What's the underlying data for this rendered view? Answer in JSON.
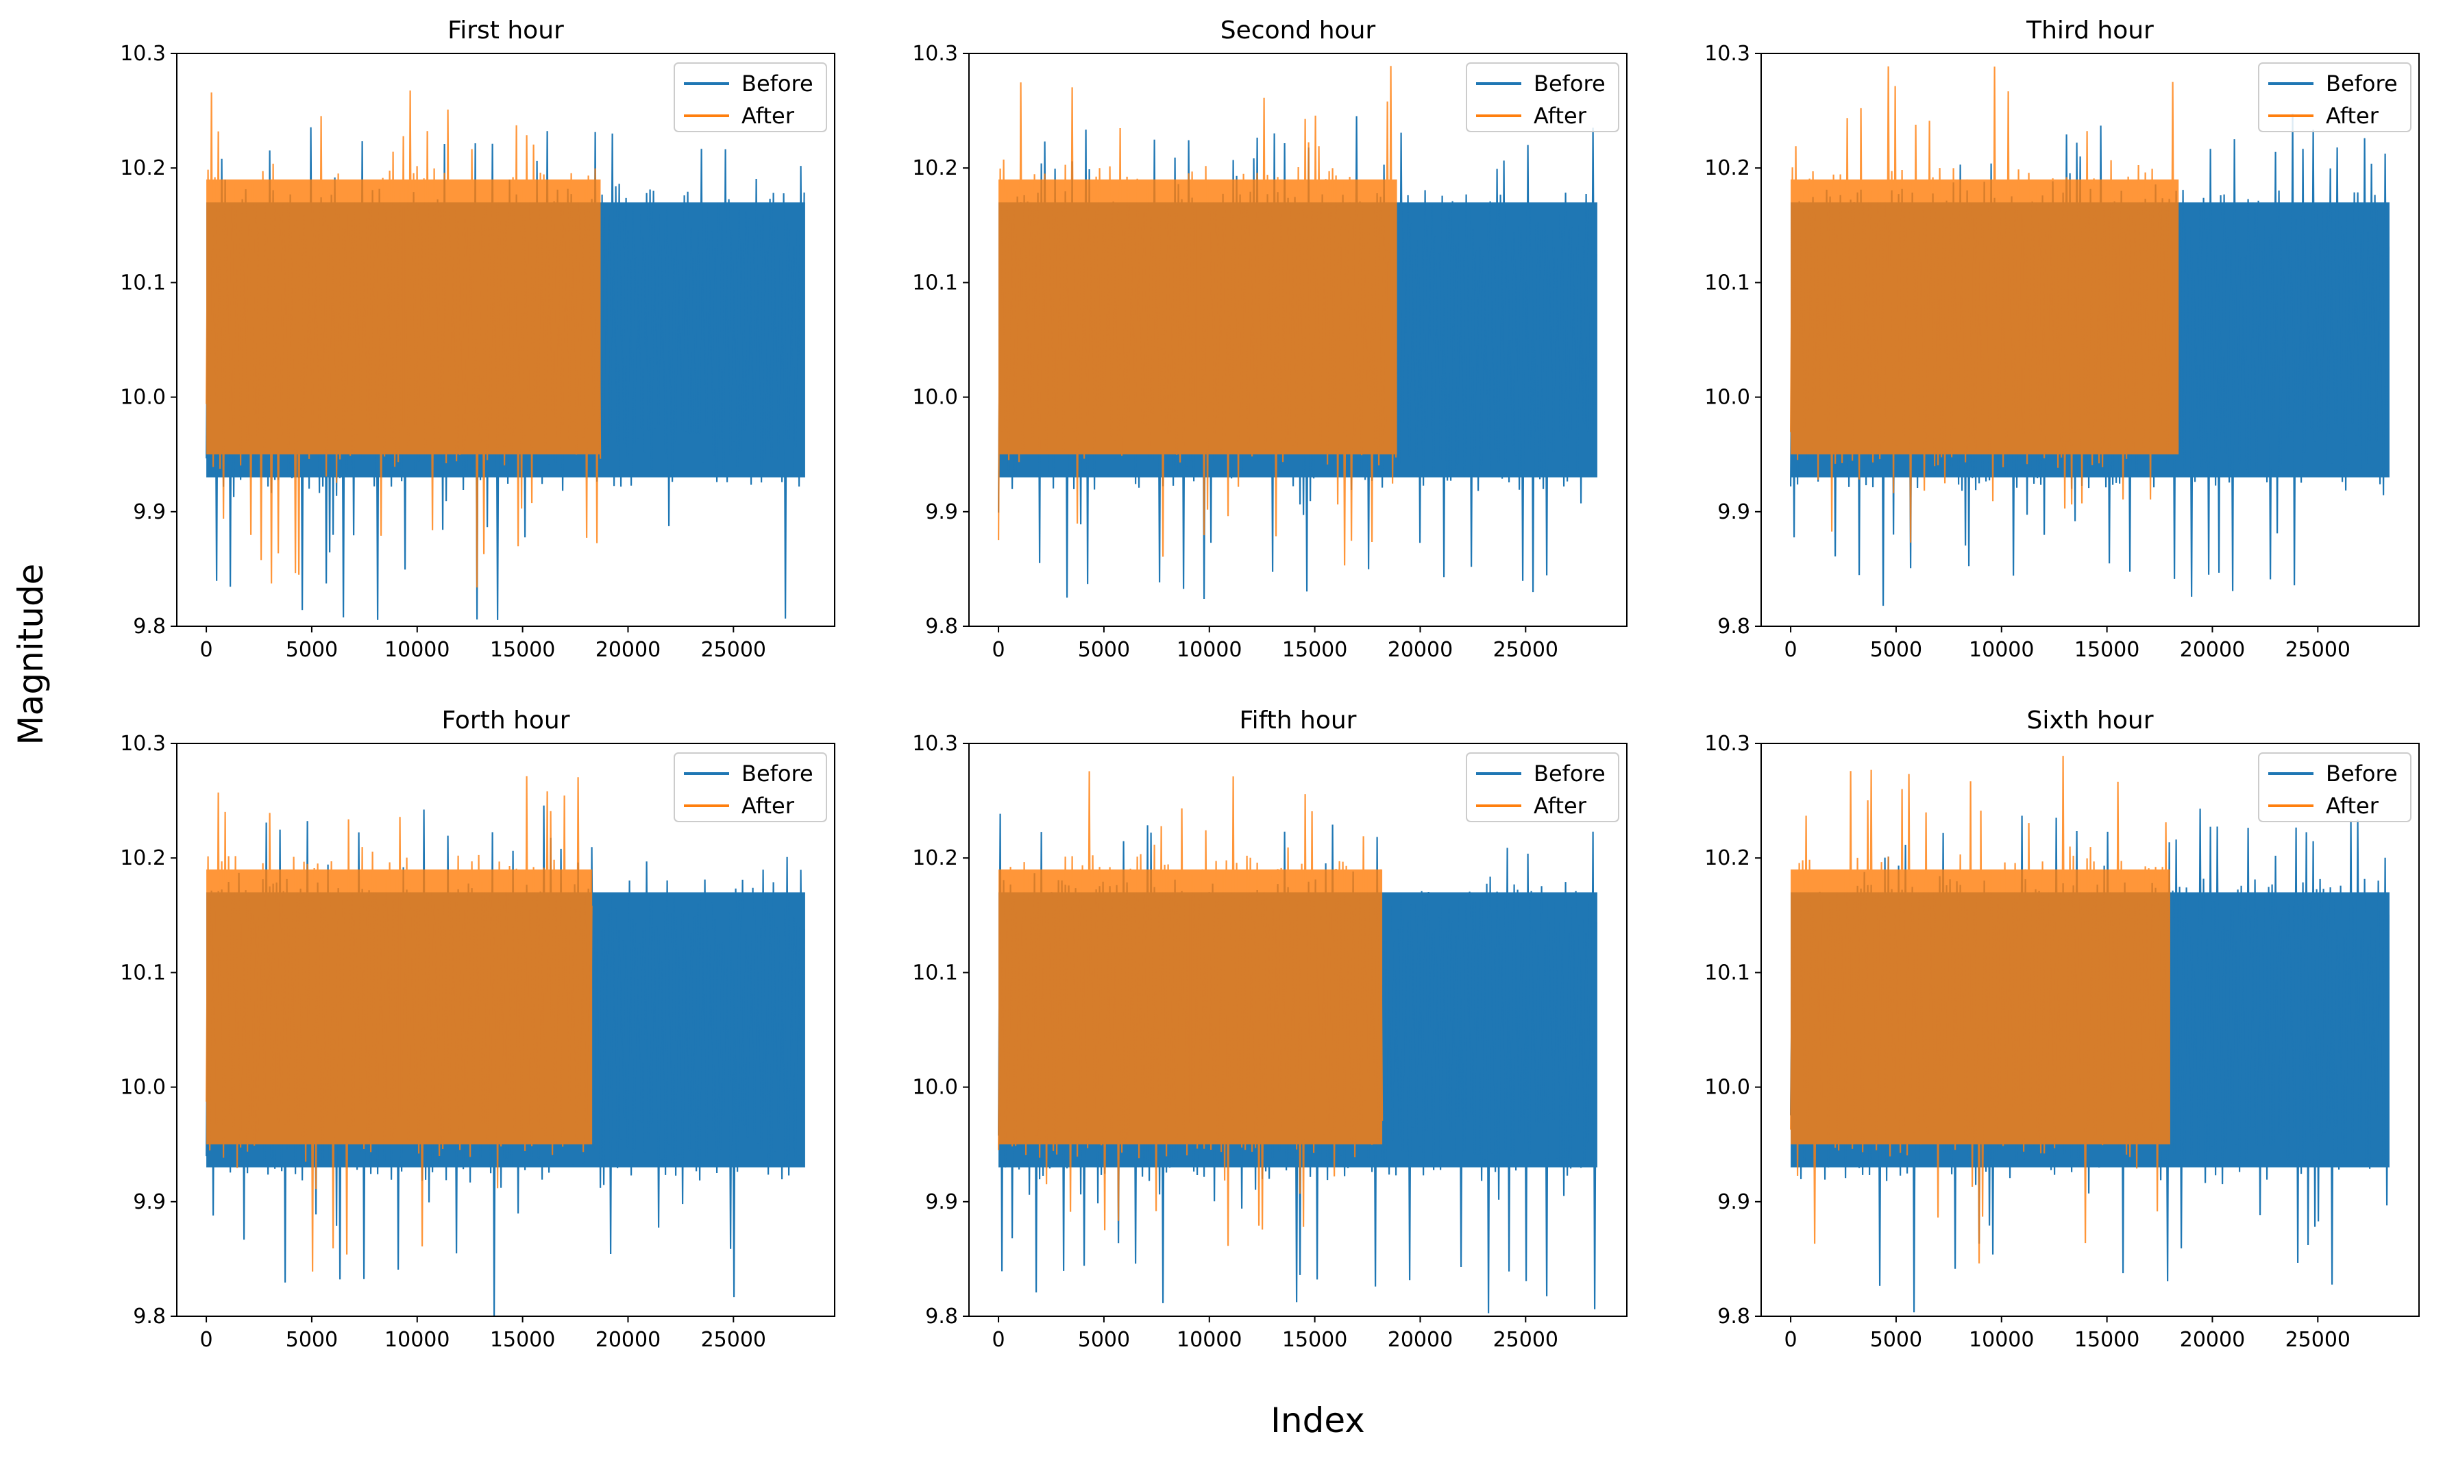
{
  "figure": {
    "xlabel": "Index",
    "ylabel": "Magnitude"
  },
  "chart_data": [
    {
      "type": "line",
      "title": "First hour",
      "xlabel": "",
      "ylabel": "",
      "xlim": [
        -1400,
        29800
      ],
      "ylim": [
        9.8,
        10.3
      ],
      "xticks": [
        0,
        5000,
        10000,
        15000,
        20000,
        25000
      ],
      "yticks": [
        9.8,
        9.9,
        10.0,
        10.1,
        10.2,
        10.3
      ],
      "legend_position": "upper-right",
      "series": [
        {
          "name": "Before",
          "color": "#1f77b4",
          "x_range": [
            0,
            28400
          ],
          "band": [
            9.93,
            10.17
          ],
          "min": 9.8,
          "max": 10.25
        },
        {
          "name": "After",
          "color": "#ff7f0e",
          "x_range": [
            0,
            18700
          ],
          "band": [
            9.95,
            10.19
          ],
          "min": 9.82,
          "max": 10.29
        }
      ]
    },
    {
      "type": "line",
      "title": "Second hour",
      "xlabel": "",
      "ylabel": "",
      "xlim": [
        -1400,
        29800
      ],
      "ylim": [
        9.8,
        10.3
      ],
      "xticks": [
        0,
        5000,
        10000,
        15000,
        20000,
        25000
      ],
      "yticks": [
        9.8,
        9.9,
        10.0,
        10.1,
        10.2,
        10.3
      ],
      "legend_position": "upper-right",
      "series": [
        {
          "name": "Before",
          "color": "#1f77b4",
          "x_range": [
            0,
            28400
          ],
          "band": [
            9.93,
            10.17
          ],
          "min": 9.8,
          "max": 10.25
        },
        {
          "name": "After",
          "color": "#ff7f0e",
          "x_range": [
            0,
            18900
          ],
          "band": [
            9.95,
            10.19
          ],
          "min": 9.83,
          "max": 10.3
        }
      ]
    },
    {
      "type": "line",
      "title": "Third hour",
      "xlabel": "",
      "ylabel": "",
      "xlim": [
        -1400,
        29800
      ],
      "ylim": [
        9.8,
        10.3
      ],
      "xticks": [
        0,
        5000,
        10000,
        15000,
        20000,
        25000
      ],
      "yticks": [
        9.8,
        9.9,
        10.0,
        10.1,
        10.2,
        10.3
      ],
      "legend_position": "upper-right",
      "series": [
        {
          "name": "Before",
          "color": "#1f77b4",
          "x_range": [
            0,
            28400
          ],
          "band": [
            9.93,
            10.17
          ],
          "min": 9.8,
          "max": 10.25
        },
        {
          "name": "After",
          "color": "#ff7f0e",
          "x_range": [
            0,
            18400
          ],
          "band": [
            9.95,
            10.19
          ],
          "min": 9.85,
          "max": 10.3
        }
      ]
    },
    {
      "type": "line",
      "title": "Forth hour",
      "xlabel": "",
      "ylabel": "",
      "xlim": [
        -1400,
        29800
      ],
      "ylim": [
        9.8,
        10.3
      ],
      "xticks": [
        0,
        5000,
        10000,
        15000,
        20000,
        25000
      ],
      "yticks": [
        9.8,
        9.9,
        10.0,
        10.1,
        10.2,
        10.3
      ],
      "legend_position": "upper-right",
      "series": [
        {
          "name": "Before",
          "color": "#1f77b4",
          "x_range": [
            0,
            28400
          ],
          "band": [
            9.93,
            10.17
          ],
          "min": 9.8,
          "max": 10.25
        },
        {
          "name": "After",
          "color": "#ff7f0e",
          "x_range": [
            0,
            18300
          ],
          "band": [
            9.95,
            10.19
          ],
          "min": 9.83,
          "max": 10.3
        }
      ]
    },
    {
      "type": "line",
      "title": "Fifth hour",
      "xlabel": "",
      "ylabel": "",
      "xlim": [
        -1400,
        29800
      ],
      "ylim": [
        9.8,
        10.3
      ],
      "xticks": [
        0,
        5000,
        10000,
        15000,
        20000,
        25000
      ],
      "yticks": [
        9.8,
        9.9,
        10.0,
        10.1,
        10.2,
        10.3
      ],
      "legend_position": "upper-right",
      "series": [
        {
          "name": "Before",
          "color": "#1f77b4",
          "x_range": [
            0,
            28400
          ],
          "band": [
            9.93,
            10.17
          ],
          "min": 9.8,
          "max": 10.25
        },
        {
          "name": "After",
          "color": "#ff7f0e",
          "x_range": [
            0,
            18200
          ],
          "band": [
            9.95,
            10.19
          ],
          "min": 9.85,
          "max": 10.3
        }
      ]
    },
    {
      "type": "line",
      "title": "Sixth hour",
      "xlabel": "",
      "ylabel": "",
      "xlim": [
        -1400,
        29800
      ],
      "ylim": [
        9.8,
        10.3
      ],
      "xticks": [
        0,
        5000,
        10000,
        15000,
        20000,
        25000
      ],
      "yticks": [
        9.8,
        9.9,
        10.0,
        10.1,
        10.2,
        10.3
      ],
      "legend_position": "upper-right",
      "series": [
        {
          "name": "Before",
          "color": "#1f77b4",
          "x_range": [
            0,
            28400
          ],
          "band": [
            9.93,
            10.17
          ],
          "min": 9.8,
          "max": 10.25
        },
        {
          "name": "After",
          "color": "#ff7f0e",
          "x_range": [
            0,
            18000
          ],
          "band": [
            9.95,
            10.19
          ],
          "min": 9.84,
          "max": 10.3
        }
      ]
    }
  ]
}
